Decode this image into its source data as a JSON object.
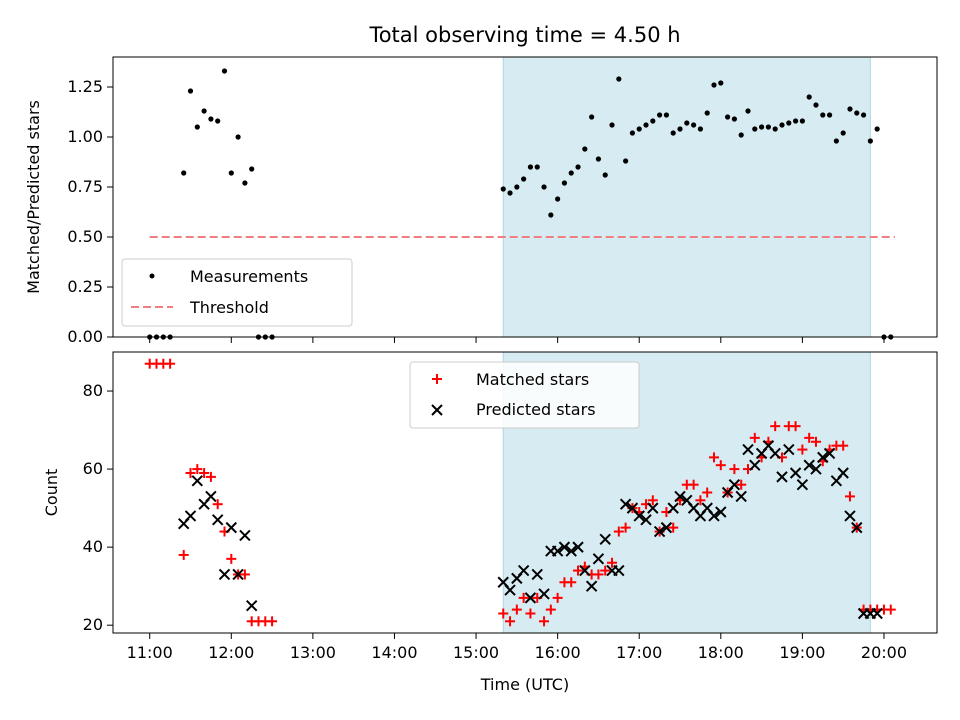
{
  "chart_data": [
    {
      "type": "scatter",
      "title": "Total observing time = 4.50 h",
      "xlabel": "",
      "ylabel": "Matched/Predicted stars",
      "xlim_hours": [
        10.55,
        20.65
      ],
      "ylim": [
        0,
        1.4
      ],
      "yticks": [
        "0.00",
        "0.25",
        "0.50",
        "0.75",
        "1.00",
        "1.25"
      ],
      "grid": false,
      "legend_position": "lower-left",
      "shaded_interval": {
        "start": "15:20",
        "end": "19:50",
        "color": "#add8e6"
      },
      "threshold": {
        "name": "Threshold",
        "value": 0.5,
        "from": "11:00",
        "to": "20:08",
        "color": "#f08080"
      },
      "series": [
        {
          "name": "Measurements",
          "color": "#000000",
          "x": [
            "11:00",
            "11:05",
            "11:10",
            "11:15",
            "11:25",
            "11:30",
            "11:35",
            "11:40",
            "11:45",
            "11:50",
            "11:55",
            "12:00",
            "12:05",
            "12:10",
            "12:15",
            "12:20",
            "12:25",
            "12:30",
            "15:20",
            "15:25",
            "15:30",
            "15:35",
            "15:40",
            "15:45",
            "15:50",
            "15:55",
            "16:00",
            "16:05",
            "16:10",
            "16:15",
            "16:20",
            "16:25",
            "16:30",
            "16:35",
            "16:40",
            "16:45",
            "16:50",
            "16:55",
            "17:00",
            "17:05",
            "17:10",
            "17:15",
            "17:20",
            "17:25",
            "17:30",
            "17:35",
            "17:40",
            "17:45",
            "17:50",
            "17:55",
            "18:00",
            "18:05",
            "18:10",
            "18:15",
            "18:20",
            "18:25",
            "18:30",
            "18:35",
            "18:40",
            "18:45",
            "18:50",
            "18:55",
            "19:00",
            "19:05",
            "19:10",
            "19:15",
            "19:20",
            "19:25",
            "19:30",
            "19:35",
            "19:40",
            "19:45",
            "19:50",
            "19:55",
            "20:00",
            "20:05"
          ],
          "y": [
            0.0,
            0.0,
            0.0,
            0.0,
            0.82,
            1.23,
            1.05,
            1.13,
            1.09,
            1.08,
            1.33,
            0.82,
            1.0,
            0.77,
            0.84,
            0.0,
            0.0,
            0.0,
            0.74,
            0.72,
            0.75,
            0.79,
            0.85,
            0.85,
            0.75,
            0.61,
            0.69,
            0.77,
            0.82,
            0.85,
            0.94,
            1.1,
            0.89,
            0.81,
            1.06,
            1.29,
            0.88,
            1.02,
            1.04,
            1.06,
            1.08,
            1.11,
            1.11,
            1.02,
            1.04,
            1.07,
            1.06,
            1.04,
            1.12,
            1.26,
            1.27,
            1.1,
            1.09,
            1.01,
            1.13,
            1.04,
            1.05,
            1.05,
            1.04,
            1.06,
            1.07,
            1.08,
            1.08,
            1.2,
            1.16,
            1.11,
            1.11,
            0.98,
            1.02,
            1.14,
            1.12,
            1.11,
            0.98,
            1.04,
            0.0,
            0.0
          ]
        }
      ]
    },
    {
      "type": "scatter",
      "title": "",
      "xlabel": "Time (UTC)",
      "ylabel": "Count",
      "xlim_hours": [
        10.55,
        20.65
      ],
      "ylim": [
        18,
        90
      ],
      "yticks": [
        "20",
        "40",
        "60",
        "80"
      ],
      "xticks": [
        "11:00",
        "12:00",
        "13:00",
        "14:00",
        "15:00",
        "16:00",
        "17:00",
        "18:00",
        "19:00",
        "20:00"
      ],
      "grid": false,
      "legend_position": "upper-center",
      "shaded_interval": {
        "start": "15:20",
        "end": "19:50",
        "color": "#add8e6"
      },
      "series": [
        {
          "name": "Matched stars",
          "marker": "plus",
          "color": "#ff0000",
          "x": [
            "11:00",
            "11:05",
            "11:10",
            "11:15",
            "11:25",
            "11:30",
            "11:35",
            "11:40",
            "11:45",
            "11:50",
            "11:55",
            "12:00",
            "12:05",
            "12:10",
            "12:15",
            "12:20",
            "12:25",
            "12:30",
            "15:20",
            "15:25",
            "15:30",
            "15:35",
            "15:40",
            "15:45",
            "15:50",
            "15:55",
            "16:00",
            "16:05",
            "16:10",
            "16:15",
            "16:20",
            "16:25",
            "16:30",
            "16:35",
            "16:40",
            "16:45",
            "16:50",
            "16:55",
            "17:00",
            "17:05",
            "17:10",
            "17:15",
            "17:20",
            "17:25",
            "17:30",
            "17:35",
            "17:40",
            "17:45",
            "17:50",
            "17:55",
            "18:00",
            "18:05",
            "18:10",
            "18:15",
            "18:20",
            "18:25",
            "18:30",
            "18:35",
            "18:40",
            "18:45",
            "18:50",
            "18:55",
            "19:00",
            "19:05",
            "19:10",
            "19:15",
            "19:20",
            "19:25",
            "19:30",
            "19:35",
            "19:40",
            "19:45",
            "19:50",
            "19:55",
            "20:00",
            "20:05"
          ],
          "y": [
            87,
            87,
            87,
            87,
            38,
            59,
            60,
            59,
            58,
            51,
            44,
            37,
            33,
            33,
            21,
            21,
            21,
            21,
            23,
            21,
            24,
            27,
            23,
            27,
            21,
            24,
            27,
            31,
            31,
            34,
            35,
            33,
            33,
            34,
            36,
            44,
            45,
            50,
            49,
            51,
            52,
            44,
            49,
            45,
            52,
            56,
            56,
            52,
            54,
            63,
            61,
            54,
            60,
            56,
            60,
            68,
            63,
            67,
            71,
            63,
            71,
            71,
            65,
            68,
            67,
            62,
            65,
            66,
            66,
            53,
            45,
            24,
            24,
            24,
            24,
            24
          ]
        },
        {
          "name": "Predicted stars",
          "marker": "x",
          "color": "#000000",
          "x": [
            "11:25",
            "11:30",
            "11:35",
            "11:40",
            "11:45",
            "11:50",
            "11:55",
            "12:00",
            "12:05",
            "12:10",
            "12:15",
            "15:20",
            "15:25",
            "15:30",
            "15:35",
            "15:40",
            "15:45",
            "15:50",
            "15:55",
            "16:00",
            "16:05",
            "16:10",
            "16:15",
            "16:20",
            "16:25",
            "16:30",
            "16:35",
            "16:40",
            "16:45",
            "16:50",
            "16:55",
            "17:00",
            "17:05",
            "17:10",
            "17:15",
            "17:20",
            "17:25",
            "17:30",
            "17:35",
            "17:40",
            "17:45",
            "17:50",
            "17:55",
            "18:00",
            "18:05",
            "18:10",
            "18:15",
            "18:20",
            "18:25",
            "18:30",
            "18:35",
            "18:40",
            "18:45",
            "18:50",
            "18:55",
            "19:00",
            "19:05",
            "19:10",
            "19:15",
            "19:20",
            "19:25",
            "19:30",
            "19:35",
            "19:40",
            "19:45",
            "19:50",
            "19:55"
          ],
          "y": [
            46,
            48,
            57,
            51,
            53,
            47,
            33,
            45,
            33,
            43,
            25,
            31,
            29,
            32,
            34,
            27,
            33,
            28,
            39,
            39,
            40,
            39,
            40,
            34,
            30,
            37,
            42,
            34,
            34,
            51,
            50,
            48,
            47,
            50,
            44,
            45,
            50,
            53,
            52,
            50,
            48,
            50,
            48,
            49,
            54,
            56,
            53,
            65,
            61,
            64,
            66,
            64,
            58,
            65,
            59,
            56,
            61,
            60,
            63,
            64,
            57,
            59,
            48,
            45,
            23,
            23,
            23
          ]
        }
      ]
    }
  ]
}
